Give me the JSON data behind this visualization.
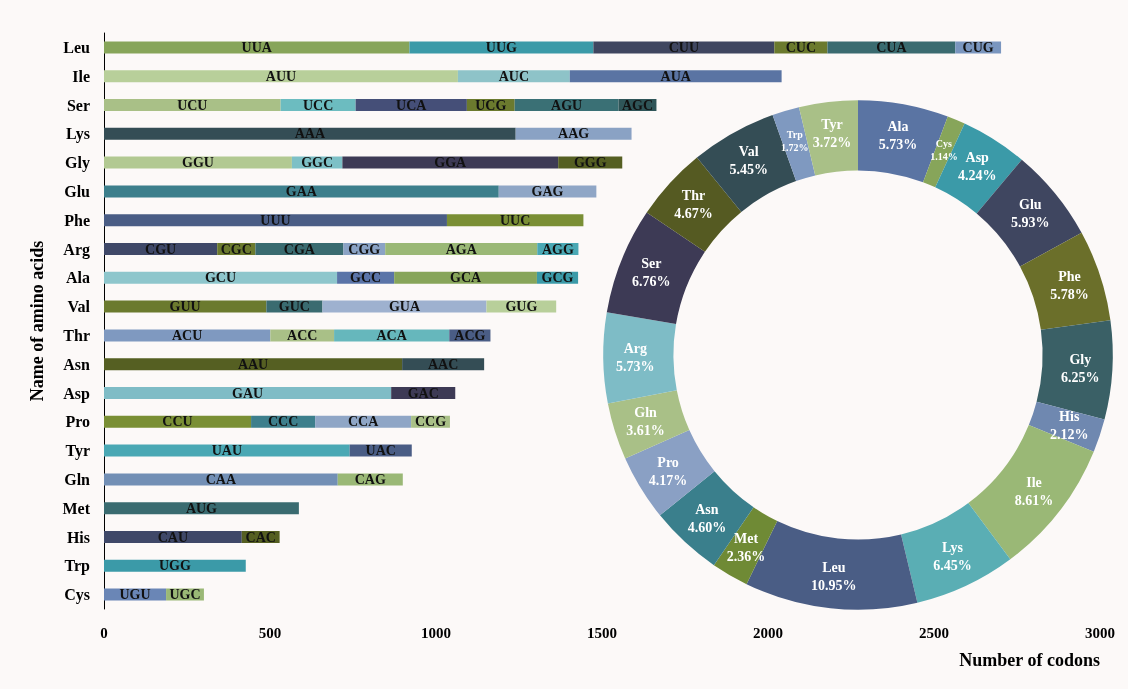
{
  "chart_data": [
    {
      "type": "bar",
      "orientation": "horizontal",
      "stacked": true,
      "xlabel": "Number of codons",
      "ylabel": "Name of amino acids",
      "categories": [
        "Leu",
        "Ile",
        "Ser",
        "Lys",
        "Gly",
        "Glu",
        "Phe",
        "Arg",
        "Ala",
        "Val",
        "Thr",
        "Asn",
        "Asp",
        "Pro",
        "Tyr",
        "Gln",
        "Met",
        "His",
        "Trp",
        "Cys"
      ],
      "xlim": [
        0,
        3000
      ],
      "xticks": [
        0,
        500,
        1000,
        1500,
        2000,
        2500,
        3000
      ],
      "grid": false,
      "series": [
        {
          "values": [
            920,
            1066,
            532,
            1240,
            566,
            1189,
            1033,
            341,
            702,
            489,
            501,
            898,
            865,
            443,
            740,
            704,
            587,
            415,
            427,
            187
          ],
          "colors": [
            "#87a55a",
            "#b8cf9a",
            "#a9c087",
            "#344d55",
            "#b2c992",
            "#3d7f8c",
            "#4a5d85",
            "#3f4868",
            "#8ec6cc",
            "#6b7a2e",
            "#7f99c0",
            "#555f22",
            "#7fbcc6",
            "#7a8f35",
            "#4aa8b4",
            "#728fb5",
            "#3a6b70",
            "#3f4868",
            "#3b9aa8",
            "#6a86b6"
          ],
          "value_labels": [
            "UUA",
            "AUU",
            "UCU",
            "AAA",
            "GGU",
            "GAA",
            "UUU",
            "CGU",
            "GCU",
            "GUU",
            "ACU",
            "AAU",
            "GAU",
            "CCU",
            "UAU",
            "CAA",
            "AUG",
            "CAU",
            "UGG",
            "UGU"
          ]
        },
        {
          "values": [
            554,
            337,
            226,
            349,
            152,
            294,
            411,
            115,
            172,
            169,
            192,
            247,
            193,
            193,
            187,
            196,
            null,
            114,
            null,
            114
          ],
          "colors": [
            "#3b9aa8",
            "#8ec3c8",
            "#6cbcc0",
            "#8aa2c4",
            "#7dc0c6",
            "#8fa6c6",
            "#7a8f35",
            "#6b7a2e",
            "#5a74a8",
            "#3a6b70",
            "#a9c087",
            "#344d55",
            "#3d3a55",
            "#3d7f8c",
            "#4a5d85",
            "#9ab876",
            null,
            "#555f22",
            null,
            "#9ab876"
          ],
          "value_labels": [
            "UUG",
            "AUC",
            "UCC",
            "AAG",
            "GGC",
            "GAG",
            "UUC",
            "CGC",
            "GCC",
            "GUC",
            "ACC",
            "AAC",
            "GAC",
            "CCC",
            "UAC",
            "CAG",
            null,
            "CAC",
            null,
            "UGC"
          ]
        },
        {
          "values": [
            545,
            638,
            335,
            null,
            650,
            null,
            null,
            265,
            430,
            494,
            347,
            null,
            null,
            289,
            null,
            null,
            null,
            null,
            null,
            null
          ],
          "colors": [
            "#3f4660",
            "#5a74a3",
            "#454f78",
            null,
            "#3d3a55",
            null,
            null,
            "#3a6b70",
            "#87a55a",
            "#9eb1cf",
            "#66b7bc",
            null,
            null,
            "#8fa6c6",
            null,
            null,
            null,
            null,
            null,
            null
          ],
          "value_labels": [
            "CUU",
            "AUA",
            "UCA",
            null,
            "GGA",
            null,
            null,
            "CGA",
            "GCA",
            "GUA",
            "ACA",
            null,
            null,
            "CCA",
            null,
            null,
            null,
            null,
            null,
            null
          ]
        },
        {
          "values": [
            160,
            null,
            144,
            null,
            193,
            null,
            null,
            126,
            124,
            210,
            124,
            null,
            null,
            117,
            null,
            null,
            null,
            null,
            null,
            null
          ],
          "colors": [
            "#6b7a2e",
            null,
            "#6b7a2e",
            null,
            "#555f22",
            null,
            null,
            "#8aa2c4",
            "#3b9aa8",
            "#b8cf9a",
            "#4a5d85",
            null,
            null,
            "#a9c087",
            null,
            null,
            null,
            null,
            null,
            null
          ],
          "value_labels": [
            "CUC",
            null,
            "UCG",
            null,
            "GGG",
            null,
            null,
            "CGG",
            "GCG",
            "GUG",
            "ACG",
            null,
            null,
            "CCG",
            null,
            null,
            null,
            null,
            null,
            null
          ]
        },
        {
          "values": [
            385,
            null,
            313,
            null,
            null,
            null,
            null,
            458,
            null,
            null,
            null,
            null,
            null,
            null,
            null,
            null,
            null,
            null,
            null,
            null
          ],
          "colors": [
            "#3a6b70",
            null,
            "#3a7075",
            null,
            null,
            null,
            null,
            "#9ab876",
            null,
            null,
            null,
            null,
            null,
            null,
            null,
            null,
            null,
            null,
            null,
            null
          ],
          "value_labels": [
            "CUA",
            null,
            "AGU",
            null,
            null,
            null,
            null,
            "AGA",
            null,
            null,
            null,
            null,
            null,
            null,
            null,
            null,
            null,
            null,
            null,
            null
          ]
        },
        {
          "values": [
            138,
            null,
            114,
            null,
            null,
            null,
            null,
            124,
            null,
            null,
            null,
            null,
            null,
            null,
            null,
            null,
            null,
            null,
            null,
            null
          ],
          "colors": [
            "#7a96bf",
            null,
            "#2f5558",
            null,
            null,
            null,
            null,
            "#4aa8b4",
            null,
            null,
            null,
            null,
            null,
            null,
            null,
            null,
            null,
            null,
            null,
            null
          ],
          "value_labels": [
            "CUG",
            null,
            "AGC",
            null,
            null,
            null,
            null,
            "AGG",
            null,
            null,
            null,
            null,
            null,
            null,
            null,
            null,
            null,
            null,
            null,
            null
          ]
        }
      ]
    },
    {
      "type": "donut",
      "categories": [
        "Ala",
        "Cys",
        "Asp",
        "Glu",
        "Phe",
        "Gly",
        "His",
        "Ile",
        "Lys",
        "Leu",
        "Met",
        "Asn",
        "Pro",
        "Gln",
        "Arg",
        "Ser",
        "Thr",
        "Val",
        "Trp",
        "Tyr"
      ],
      "values": [
        5.73,
        1.14,
        4.24,
        5.93,
        5.78,
        6.25,
        2.12,
        8.61,
        6.45,
        10.95,
        2.36,
        4.6,
        4.17,
        3.61,
        5.73,
        6.76,
        4.67,
        5.45,
        1.72,
        3.72
      ],
      "value_labels": [
        "5.73%",
        "1.14%",
        "4.24%",
        "5.93%",
        "5.78%",
        "6.25%",
        "2.12%",
        "8.61%",
        "6.45%",
        "10.95%",
        "2.36%",
        "4.60%",
        "4.17%",
        "3.61%",
        "5.73%",
        "6.76%",
        "4.67%",
        "5.45%",
        "1.72%",
        "3.72%"
      ],
      "colors": [
        "#5a74a3",
        "#87a55a",
        "#3b9aa8",
        "#3f4660",
        "#6b6f2a",
        "#3a6066",
        "#6f88b0",
        "#9ab876",
        "#5aaeb4",
        "#4a5d85",
        "#6f8a35",
        "#3a7f8c",
        "#8aa0c4",
        "#a9c087",
        "#7ebcc6",
        "#3d3a55",
        "#555a22",
        "#344d55",
        "#7f99c0",
        "#a9c087"
      ]
    }
  ]
}
